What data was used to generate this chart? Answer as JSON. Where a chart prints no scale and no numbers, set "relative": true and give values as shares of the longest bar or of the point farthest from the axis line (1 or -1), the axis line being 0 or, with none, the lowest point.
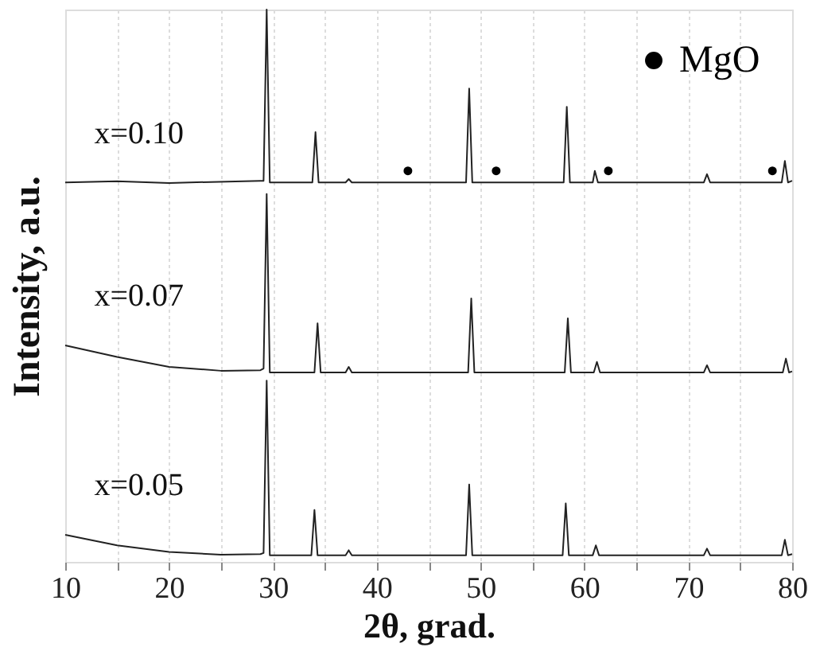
{
  "chart_data": {
    "type": "line",
    "relative": true,
    "xlabel": "2θ, grad.",
    "ylabel": "Intensity, a.u.",
    "xlim": [
      10,
      80
    ],
    "xticks": [
      10,
      {
        "value": 15,
        "label": null
      },
      20,
      {
        "value": 25,
        "label": null
      },
      30,
      {
        "value": 35,
        "label": null
      },
      40,
      {
        "value": 45,
        "label": null
      },
      50,
      {
        "value": 55,
        "label": null
      },
      60,
      {
        "value": 65,
        "label": null
      },
      70,
      {
        "value": 75,
        "label": null
      },
      80
    ],
    "grid": "x",
    "legend": "top right",
    "line_style": "solid",
    "series": [
      {
        "name": "x=0.10",
        "color": "#222222",
        "x": [
          10,
          15,
          20,
          28.8,
          29.1,
          29.4,
          29.7,
          33.8,
          34.1,
          34.4,
          37.0,
          37.3,
          37.6,
          48.6,
          48.9,
          49.2,
          58.0,
          58.3,
          58.6,
          60.8,
          61.0,
          61.3,
          71.5,
          71.8,
          72.1,
          79.0,
          79.3,
          79.6,
          80
        ],
        "values": [
          0.687,
          0.689,
          0.686,
          0.69,
          0.69,
          1.0,
          0.687,
          0.687,
          0.778,
          0.687,
          0.687,
          0.693,
          0.687,
          0.687,
          0.857,
          0.687,
          0.687,
          0.824,
          0.687,
          0.687,
          0.708,
          0.687,
          0.687,
          0.702,
          0.687,
          0.687,
          0.726,
          0.687,
          0.69
        ]
      },
      {
        "name": "x=0.07",
        "color": "#222222",
        "x": [
          10,
          15,
          20,
          25,
          28.8,
          29.1,
          29.4,
          29.7,
          34.0,
          34.3,
          34.6,
          37.0,
          37.3,
          37.6,
          48.8,
          49.1,
          49.4,
          58.1,
          58.4,
          58.7,
          60.9,
          61.2,
          61.5,
          71.5,
          71.8,
          72.1,
          79.1,
          79.4,
          79.7,
          80
        ],
        "values": [
          0.392,
          0.371,
          0.353,
          0.346,
          0.347,
          0.35,
          0.666,
          0.343,
          0.343,
          0.432,
          0.343,
          0.343,
          0.353,
          0.343,
          0.343,
          0.477,
          0.343,
          0.343,
          0.441,
          0.343,
          0.343,
          0.362,
          0.343,
          0.343,
          0.356,
          0.343,
          0.343,
          0.368,
          0.343,
          0.345
        ]
      },
      {
        "name": "x=0.05",
        "color": "#222222",
        "x": [
          10,
          15,
          20,
          25,
          28.8,
          29.1,
          29.4,
          29.7,
          33.7,
          34.0,
          34.3,
          37.0,
          37.3,
          37.6,
          48.6,
          48.9,
          49.2,
          57.9,
          58.2,
          58.5,
          60.8,
          61.1,
          61.4,
          71.5,
          71.8,
          72.1,
          79.0,
          79.3,
          79.6,
          80
        ],
        "values": [
          0.049,
          0.03,
          0.018,
          0.013,
          0.014,
          0.016,
          0.328,
          0.012,
          0.012,
          0.094,
          0.012,
          0.012,
          0.021,
          0.012,
          0.012,
          0.14,
          0.012,
          0.012,
          0.106,
          0.012,
          0.012,
          0.03,
          0.012,
          0.012,
          0.024,
          0.012,
          0.012,
          0.04,
          0.012,
          0.014
        ]
      },
      {
        "name": "MgO",
        "type": "scatter",
        "marker": "circle",
        "color": "#000000",
        "x": [
          43.0,
          51.5,
          62.3,
          78.1
        ],
        "values": [
          0.708,
          0.708,
          0.708,
          0.708
        ]
      }
    ]
  }
}
